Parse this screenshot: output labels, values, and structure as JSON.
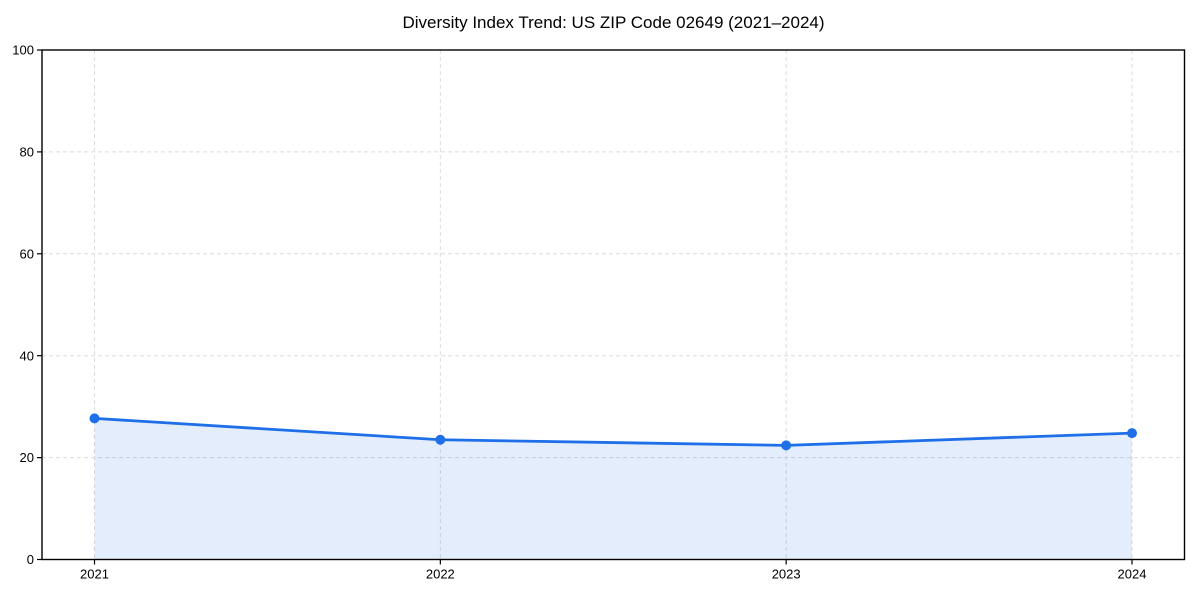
{
  "page": {
    "background": "#ffffff"
  },
  "chart_data": {
    "type": "area",
    "title": "Diversity Index Trend: US ZIP Code 02649 (2021–2024)",
    "categories": [
      "2021",
      "2022",
      "2023",
      "2024"
    ],
    "values": [
      27.7,
      23.5,
      22.4,
      24.8
    ],
    "series_name": "Diversity Index",
    "xlabel": "",
    "ylabel": "",
    "ylim": [
      0,
      100
    ],
    "yticks": [
      0,
      20,
      40,
      60,
      80,
      100
    ],
    "grid": true,
    "grid_style": "dashed",
    "legend": "none",
    "marker": "circle",
    "colors": {
      "line": "#1f6fe8",
      "fill": "#1f6fe8",
      "fill_opacity": 0.12,
      "grid": "#dcdcdc",
      "spine": "#000000",
      "text": "#000000"
    }
  }
}
